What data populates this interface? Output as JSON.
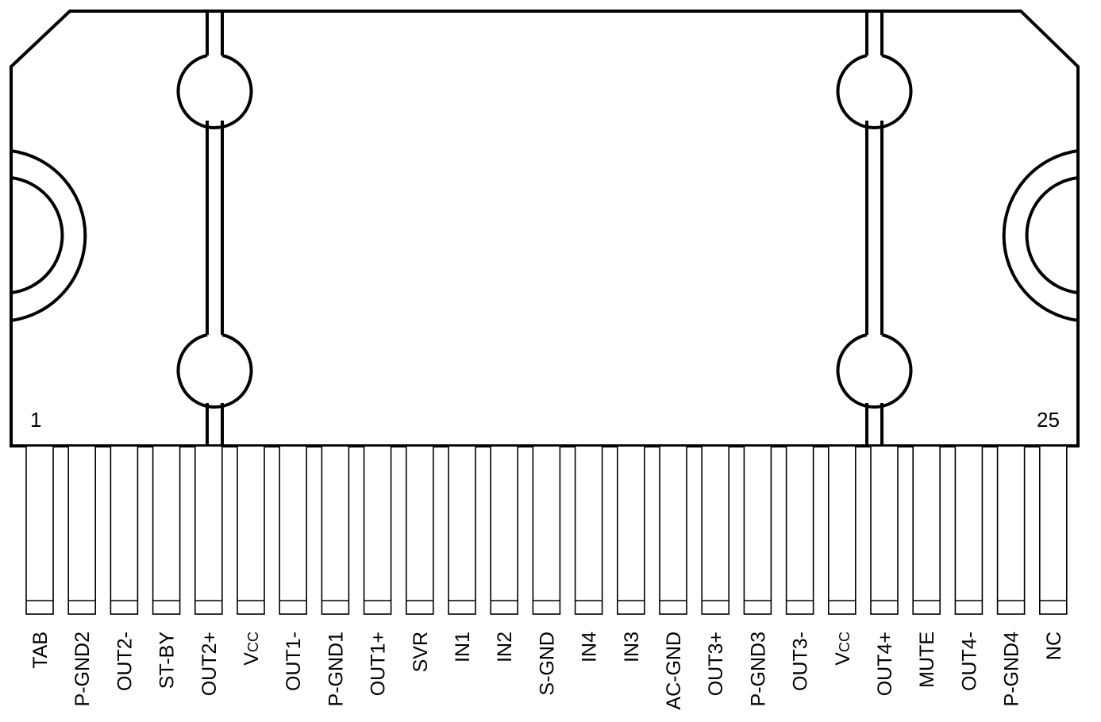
{
  "package": {
    "first_pin_marker": "1",
    "last_pin_marker": "25"
  },
  "pins": [
    {
      "label": "TAB"
    },
    {
      "label": "P-GND2"
    },
    {
      "label": "OUT2-"
    },
    {
      "label": "ST-BY"
    },
    {
      "label": "OUT2+"
    },
    {
      "label": "V",
      "sub": "CC"
    },
    {
      "label": "OUT1-"
    },
    {
      "label": "P-GND1"
    },
    {
      "label": "OUT1+"
    },
    {
      "label": "SVR"
    },
    {
      "label": "IN1"
    },
    {
      "label": "IN2"
    },
    {
      "label": "S-GND"
    },
    {
      "label": "IN4"
    },
    {
      "label": "IN3"
    },
    {
      "label": "AC-GND"
    },
    {
      "label": "OUT3+"
    },
    {
      "label": "P-GND3"
    },
    {
      "label": "OUT3-"
    },
    {
      "label": "V",
      "sub": "CC"
    },
    {
      "label": "OUT4+"
    },
    {
      "label": "MUTE"
    },
    {
      "label": "OUT4-"
    },
    {
      "label": "P-GND4"
    },
    {
      "label": "NC"
    }
  ]
}
